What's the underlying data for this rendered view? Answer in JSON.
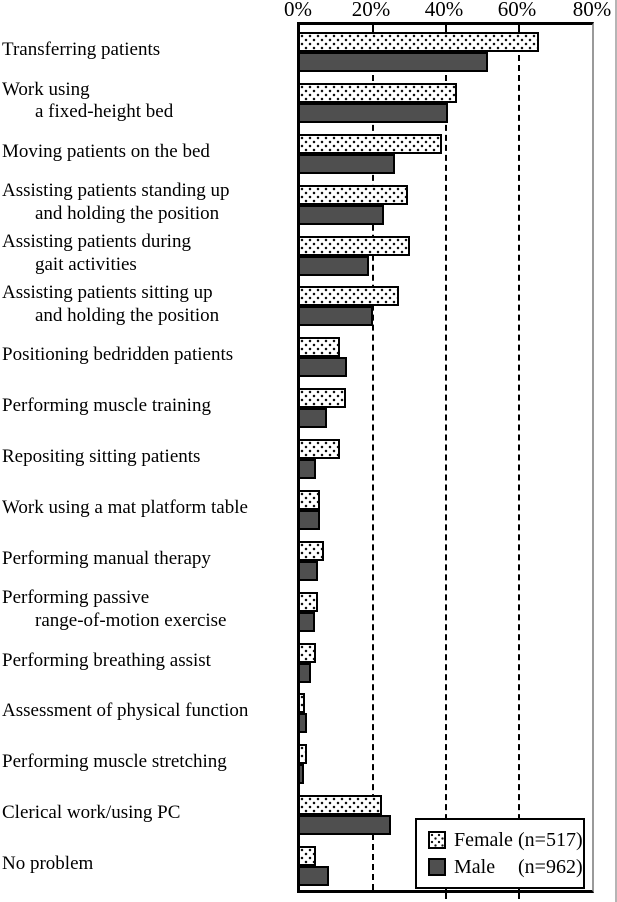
{
  "chart_data": {
    "type": "bar",
    "orientation": "horizontal",
    "title": "",
    "xlabel": "",
    "ylabel": "",
    "unit": "%",
    "xlim": [
      0,
      80
    ],
    "xticks": [
      "0%",
      "20%",
      "40%",
      "60%",
      "80%"
    ],
    "gridlines_percent": [
      20,
      40,
      60
    ],
    "grid_style": "dashed-vertical",
    "legend_position": "bottom-right-inside",
    "categories": [
      "Transferring patients",
      "Work using a fixed-height bed",
      "Moving patients on the bed",
      "Assisting patients standing up and holding the position",
      "Assisting patients during gait activities",
      "Assisting patients sitting up and holding the position",
      "Positioning bedridden patients",
      "Performing muscle training",
      "Repositing sitting patients",
      "Work using a mat platform table",
      "Performing manual therapy",
      "Performing passive range-of-motion exercise",
      "Performing breathing assist",
      "Assessment of physical function",
      "Performing muscle stretching",
      "Clerical work/using PC",
      "No problem"
    ],
    "category_lines": [
      [
        "Transferring patients"
      ],
      [
        "Work using",
        "a fixed-height bed"
      ],
      [
        "Moving patients on the bed"
      ],
      [
        "Assisting patients standing up",
        "and holding the position"
      ],
      [
        "Assisting patients during",
        "gait activities"
      ],
      [
        "Assisting patients sitting up",
        "and holding the position"
      ],
      [
        "Positioning bedridden patients"
      ],
      [
        "Performing muscle training"
      ],
      [
        "Repositing sitting patients"
      ],
      [
        "Work using a mat platform table"
      ],
      [
        "Performing manual therapy"
      ],
      [
        "Performing passive",
        "range-of-motion exercise"
      ],
      [
        "Performing breathing assist"
      ],
      [
        "Assessment of physical function"
      ],
      [
        "Performing muscle stretching"
      ],
      [
        "Clerical work/using PC"
      ],
      [
        "No problem"
      ]
    ],
    "series": [
      {
        "name": "Female (n=517)",
        "pattern": "dotted",
        "fill": "#ffffff",
        "dot_color": "#111111",
        "values": [
          65.5,
          43,
          39,
          29.5,
          30,
          27,
          11,
          12.5,
          11,
          5.5,
          6.5,
          5,
          4.5,
          1.5,
          2,
          22.5,
          4.5
        ]
      },
      {
        "name": "Male (n=962)",
        "pattern": "solid",
        "fill": "#4f4f4f",
        "values": [
          51.5,
          40.5,
          26,
          23,
          19,
          20,
          13,
          7.5,
          4.5,
          5.5,
          5,
          4,
          3,
          2,
          1,
          25,
          8
        ]
      }
    ]
  },
  "legend": {
    "entries": [
      {
        "name": "Female",
        "count": "(n=517)",
        "full_label": "Female (n=517)"
      },
      {
        "name": "Male",
        "count": "(n=962)",
        "full_label": "Male (n=962)"
      }
    ]
  },
  "colors": {
    "bar_border": "#000000",
    "male_fill": "#4f4f4f",
    "plot_border": "#000000",
    "plot_right_border": "#9a9a9a",
    "background": "#ffffff"
  }
}
